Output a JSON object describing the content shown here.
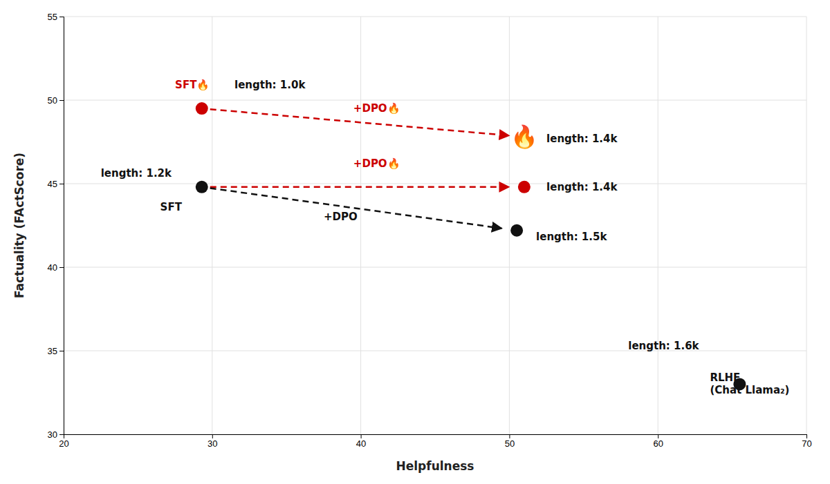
{
  "chart_data": {
    "type": "scatter",
    "xlabel": "Helpfulness",
    "ylabel": "Factuality (FActScore)",
    "xlim": [
      20,
      70
    ],
    "ylim": [
      30,
      55
    ],
    "xticks": [
      20,
      30,
      40,
      50,
      60,
      70
    ],
    "yticks": [
      30,
      35,
      40,
      45,
      50,
      55
    ],
    "grid": true,
    "series": [
      {
        "type": "arrow",
        "color": "#cc0000",
        "line_style": "dashed",
        "x": [
          29.3,
          51.0
        ],
        "values": [
          49.5,
          47.8
        ]
      },
      {
        "type": "arrow",
        "color": "#cc0000",
        "line_style": "dashed",
        "x": [
          29.3,
          51.0
        ],
        "values": [
          44.8,
          44.8
        ]
      },
      {
        "type": "arrow",
        "color": "#111111",
        "line_style": "dashed",
        "x": [
          29.3,
          50.5
        ],
        "values": [
          44.8,
          42.2
        ]
      },
      {
        "type": "scatter",
        "color": "#cc0000",
        "marker": "circle",
        "x": [
          29.3,
          51.0
        ],
        "values": [
          49.5,
          44.8
        ]
      },
      {
        "type": "scatter",
        "color": "#cc0000",
        "marker": "🔥",
        "x": [
          51.0
        ],
        "values": [
          47.8
        ]
      },
      {
        "type": "scatter",
        "color": "#111111",
        "marker": "circle",
        "x": [
          29.3,
          50.5,
          65.5
        ],
        "values": [
          44.8,
          42.2,
          33.0
        ]
      }
    ],
    "annotations": [
      {
        "text": "SFT🔥",
        "x": 27.5,
        "y": 50.9,
        "color": "#cc0000"
      },
      {
        "text": "length: 1.0k",
        "x": 31.5,
        "y": 50.9,
        "color": "#111111"
      },
      {
        "text": "+DPO🔥",
        "x": 39.5,
        "y": 49.5,
        "color": "#cc0000"
      },
      {
        "text": "length: 1.4k",
        "x": 52.5,
        "y": 47.7,
        "color": "#111111"
      },
      {
        "text": "+DPO🔥",
        "x": 39.5,
        "y": 46.2,
        "color": "#cc0000"
      },
      {
        "text": "length: 1.4k",
        "x": 52.5,
        "y": 44.8,
        "color": "#111111"
      },
      {
        "text": "length: 1.2k",
        "x": 22.5,
        "y": 45.6,
        "color": "#111111"
      },
      {
        "text": "SFT",
        "x": 26.5,
        "y": 43.6,
        "color": "#111111"
      },
      {
        "text": "+DPO",
        "x": 37.5,
        "y": 43.0,
        "color": "#111111"
      },
      {
        "text": "length: 1.5k",
        "x": 51.8,
        "y": 41.8,
        "color": "#111111"
      },
      {
        "text": "length: 1.6k",
        "x": 58.0,
        "y": 35.3,
        "color": "#111111"
      },
      {
        "text": "RLHF\n(Chat Llama₂)",
        "x": 63.5,
        "y": 33.0,
        "color": "#111111"
      }
    ]
  }
}
